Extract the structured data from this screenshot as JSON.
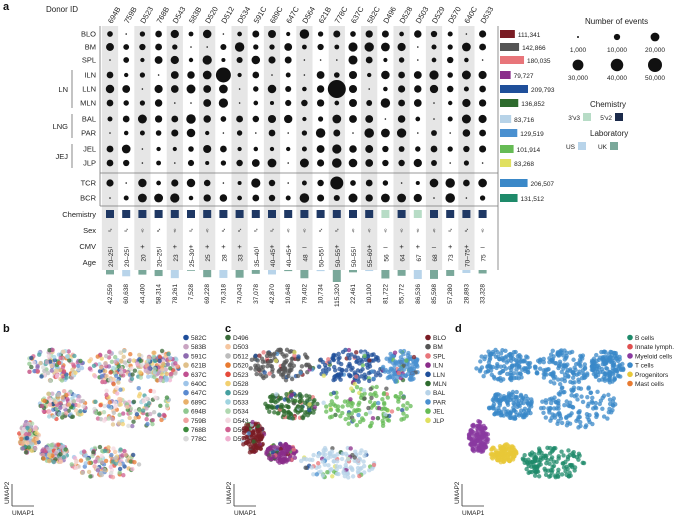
{
  "panels": [
    "a",
    "b",
    "c",
    "d"
  ],
  "panel_a": {
    "donor_header": "Donor ID",
    "donors": [
      "694B",
      "759B",
      "D523",
      "768B",
      "D543",
      "583B",
      "D520",
      "D512",
      "D534",
      "591C",
      "689C",
      "647C",
      "D564",
      "621B",
      "778C",
      "637C",
      "582C",
      "D496",
      "D528",
      "D503",
      "D529",
      "D570",
      "640C",
      "D533"
    ],
    "tissue_rows": [
      "BLO",
      "BM",
      "SPL",
      "ILN",
      "LLN",
      "MLN",
      "BAL",
      "PAR",
      "JEL",
      "JLP",
      "TCR",
      "BCR"
    ],
    "groups": [
      {
        "name": "LN",
        "rows": [
          "ILN",
          "LLN",
          "MLN"
        ]
      },
      {
        "name": "LNG",
        "rows": [
          "BAL",
          "PAR"
        ]
      },
      {
        "name": "JEJ",
        "rows": [
          "JEL",
          "JLP"
        ]
      }
    ],
    "row_totals": [
      {
        "label": "111,341",
        "value": 111341,
        "color": "#7a1c24"
      },
      {
        "label": "142,866",
        "value": 142866,
        "color": "#555555"
      },
      {
        "label": "180,035",
        "value": 180035,
        "color": "#e8757a"
      },
      {
        "label": "79,727",
        "value": 79727,
        "color": "#8a2c8a"
      },
      {
        "label": "209,793",
        "value": 209793,
        "color": "#1f4f9a"
      },
      {
        "label": "136,852",
        "value": 136852,
        "color": "#2e6b2e"
      },
      {
        "label": "83,716",
        "value": 83716,
        "color": "#b7d3e8"
      },
      {
        "label": "129,519",
        "value": 129519,
        "color": "#4a90d0"
      },
      {
        "label": "101,914",
        "value": 101914,
        "color": "#66bb55"
      },
      {
        "label": "83,268",
        "value": 83268,
        "color": "#e0e060"
      },
      {
        "label": "206,507",
        "value": 206507,
        "color": "#3a88c8"
      },
      {
        "label": "131,512",
        "value": 131512,
        "color": "#1e8a6a"
      }
    ],
    "meta_rows": [
      "Chemistry",
      "Sex",
      "CMV",
      "Age"
    ],
    "chemistry": [
      "5v2",
      "5v2",
      "5v2",
      "5v2",
      "5v2",
      "5v2",
      "5v2",
      "5v2",
      "5v2",
      "5v2",
      "5v2",
      "5v2",
      "5v2",
      "5v2",
      "5v2",
      "5v2",
      "5v2",
      "3v3",
      "5v2",
      "3v3",
      "5v2",
      "5v2",
      "5v2",
      "5v2"
    ],
    "sex": [
      "♂",
      "♂",
      "♀",
      "♂",
      "♀",
      "♂",
      "♀",
      "♂",
      "♂",
      "♂",
      "♂",
      "♀",
      "♀",
      "♂",
      "♂",
      "♀",
      "♀",
      "♀",
      "♀",
      "♀",
      "♀",
      "♂",
      "♂",
      "♀"
    ],
    "cmv": [
      "–",
      "–",
      "+",
      "–",
      "+",
      "+",
      "+",
      "+",
      "+",
      "–",
      "+",
      "+",
      "–",
      "–",
      "+",
      "–",
      "+",
      "–",
      "+",
      "+",
      "–",
      "+",
      "+",
      "–"
    ],
    "age": [
      "20–25",
      "20–25",
      "20",
      "20–25",
      "23",
      "25–30",
      "25",
      "28",
      "33",
      "35–40",
      "40–45",
      "40–45",
      "48",
      "50–55",
      "50–55",
      "50–55",
      "55–60",
      "56",
      "64",
      "67",
      "68",
      "73",
      "70–75",
      "75"
    ],
    "donor_totals": [
      {
        "label": "42,559",
        "value": 42559
      },
      {
        "label": "60,638",
        "value": 60638
      },
      {
        "label": "44,400",
        "value": 44400
      },
      {
        "label": "58,314",
        "value": 58314
      },
      {
        "label": "78,261",
        "value": 78261
      },
      {
        "label": "7,528",
        "value": 7528
      },
      {
        "label": "69,228",
        "value": 69228
      },
      {
        "label": "76,318",
        "value": 76318
      },
      {
        "label": "74,043",
        "value": 74043
      },
      {
        "label": "37,078",
        "value": 37078
      },
      {
        "label": "42,870",
        "value": 42870
      },
      {
        "label": "10,648",
        "value": 10648
      },
      {
        "label": "79,402",
        "value": 79402
      },
      {
        "label": "10,734",
        "value": 10734
      },
      {
        "label": "115,320",
        "value": 115320
      },
      {
        "label": "22,461",
        "value": 22461
      },
      {
        "label": "10,100",
        "value": 10100
      },
      {
        "label": "81,722",
        "value": 81722
      },
      {
        "label": "55,772",
        "value": 55772
      },
      {
        "label": "86,536",
        "value": 86536
      },
      {
        "label": "85,598",
        "value": 85598
      },
      {
        "label": "57,280",
        "value": 57280
      },
      {
        "label": "28,893",
        "value": 28893
      },
      {
        "label": "33,328",
        "value": 33328
      }
    ],
    "legend": {
      "events_title": "Number of events",
      "events": [
        {
          "label": "1,000",
          "value": 1000
        },
        {
          "label": "10,000",
          "value": 10000
        },
        {
          "label": "20,000",
          "value": 20000
        },
        {
          "label": "30,000",
          "value": 30000
        },
        {
          "label": "40,000",
          "value": 40000
        },
        {
          "label": "50,000",
          "value": 50000
        }
      ],
      "chemistry_title": "Chemistry",
      "chemistry": [
        {
          "label": "3'v3",
          "color": "#b7dcc6"
        },
        {
          "label": "5'v2",
          "color": "#1b2a4a"
        }
      ],
      "lab_title": "Laboratory",
      "lab": [
        {
          "label": "US",
          "color": "#b8d4ea"
        },
        {
          "label": "UK",
          "color": "#7aa89a"
        }
      ]
    },
    "colors": {
      "chem_3v3": "#b7dcc6",
      "chem_5v2": "#1f3864",
      "lab_us": "#b8d4ea",
      "lab_uk": "#7aa89a",
      "stripe": "#e6e6e6",
      "dot": "#111111"
    }
  },
  "umap": {
    "xlabel": "UMAP1",
    "ylabel": "UMAP2",
    "panel_b_legend": [
      "582C",
      "583B",
      "591C",
      "621B",
      "637C",
      "640C",
      "647C",
      "689C",
      "694B",
      "759B",
      "768B",
      "778C",
      "D496",
      "D503",
      "D512",
      "D520",
      "D523",
      "D528",
      "D529",
      "D533",
      "D534",
      "D543",
      "D564",
      "D570"
    ],
    "panel_b_colors": [
      "#1f4e9a",
      "#c9a4c2",
      "#8e6bb0",
      "#e0c08a",
      "#c05090",
      "#9ec4e8",
      "#5a8ad0",
      "#e8b06a",
      "#90c890",
      "#f0a0a0",
      "#3d8a3d",
      "#d9d9d9",
      "#3a6b3a",
      "#f5c6a0",
      "#bcbcbc",
      "#e87a30",
      "#e64a3a",
      "#f2d070",
      "#46a0a0",
      "#a0d4e0",
      "#b0d8b0",
      "#f4d8e0",
      "#d06090",
      "#f0b0d0"
    ],
    "panel_c_legend": [
      "BLO",
      "BM",
      "SPL",
      "ILN",
      "LLN",
      "MLN",
      "BAL",
      "PAR",
      "JEL",
      "JLP"
    ],
    "panel_c_colors": [
      "#7a1c24",
      "#555555",
      "#e8757a",
      "#8a2c8a",
      "#1f4f9a",
      "#2e6b2e",
      "#b7d3e8",
      "#4a90d0",
      "#66bb55",
      "#e0e060"
    ],
    "panel_d_legend": [
      "B cells",
      "Innate lymph.",
      "Myeloid cells",
      "T cells",
      "Progenitors",
      "Mast cells"
    ],
    "panel_d_colors": [
      "#1e8a6a",
      "#e05050",
      "#8a3aa0",
      "#3a88c8",
      "#e8c838",
      "#e87a30"
    ]
  }
}
